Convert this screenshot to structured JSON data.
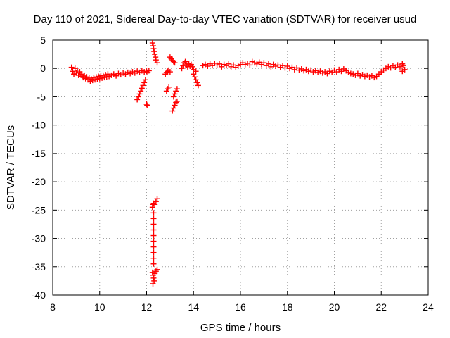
{
  "chart_data": {
    "type": "scatter",
    "title": "Day 110 of 2021, Sidereal Day-to-day VTEC variation (SDTVAR) for receiver usud",
    "xlabel": "GPS time / hours",
    "ylabel": "SDTVAR / TECUs",
    "xlim": [
      8,
      24
    ],
    "ylim": [
      -40,
      5
    ],
    "xticks": [
      8,
      10,
      12,
      14,
      16,
      18,
      20,
      22,
      24
    ],
    "yticks": [
      5,
      0,
      -5,
      -10,
      -15,
      -20,
      -25,
      -30,
      -35,
      -40
    ],
    "grid": true,
    "marker": "+",
    "marker_color": "#ff0000",
    "series": [
      {
        "name": "SDTVAR",
        "points": [
          [
            8.8,
            0.2
          ],
          [
            8.85,
            -0.5
          ],
          [
            8.9,
            -1.0
          ],
          [
            8.95,
            0.0
          ],
          [
            9.0,
            -0.8
          ],
          [
            9.05,
            -0.3
          ],
          [
            9.1,
            -1.2
          ],
          [
            9.15,
            -0.6
          ],
          [
            9.2,
            -1.0
          ],
          [
            9.25,
            -1.4
          ],
          [
            9.3,
            -1.6
          ],
          [
            9.35,
            -1.2
          ],
          [
            9.4,
            -1.8
          ],
          [
            9.45,
            -1.5
          ],
          [
            9.5,
            -2.0
          ],
          [
            9.55,
            -1.7
          ],
          [
            9.6,
            -2.3
          ],
          [
            9.65,
            -1.9
          ],
          [
            9.7,
            -2.1
          ],
          [
            9.75,
            -1.6
          ],
          [
            9.8,
            -2.0
          ],
          [
            9.85,
            -1.5
          ],
          [
            9.9,
            -1.9
          ],
          [
            9.95,
            -1.4
          ],
          [
            10.0,
            -1.8
          ],
          [
            10.05,
            -1.3
          ],
          [
            10.1,
            -1.7
          ],
          [
            10.15,
            -1.2
          ],
          [
            10.2,
            -1.6
          ],
          [
            10.25,
            -1.1
          ],
          [
            10.3,
            -1.5
          ],
          [
            10.35,
            -1.0
          ],
          [
            10.4,
            -1.4
          ],
          [
            10.5,
            -1.2
          ],
          [
            10.6,
            -1.0
          ],
          [
            10.7,
            -1.3
          ],
          [
            10.8,
            -0.9
          ],
          [
            10.9,
            -1.1
          ],
          [
            11.0,
            -0.8
          ],
          [
            11.1,
            -1.0
          ],
          [
            11.2,
            -0.7
          ],
          [
            11.3,
            -0.9
          ],
          [
            11.4,
            -0.6
          ],
          [
            11.5,
            -0.8
          ],
          [
            11.6,
            -0.5
          ],
          [
            11.7,
            -0.7
          ],
          [
            11.8,
            -0.4
          ],
          [
            11.9,
            -0.6
          ],
          [
            12.0,
            -0.5
          ],
          [
            12.05,
            -0.7
          ],
          [
            12.1,
            -0.4
          ],
          [
            11.6,
            -5.5
          ],
          [
            11.65,
            -5.0
          ],
          [
            11.7,
            -4.5
          ],
          [
            11.75,
            -4.0
          ],
          [
            11.8,
            -3.5
          ],
          [
            11.85,
            -3.0
          ],
          [
            11.9,
            -2.5
          ],
          [
            11.95,
            -2.0
          ],
          [
            12.0,
            -6.3
          ],
          [
            12.02,
            -6.5
          ],
          [
            12.25,
            4.5
          ],
          [
            12.28,
            4.0
          ],
          [
            12.3,
            3.5
          ],
          [
            12.32,
            3.0
          ],
          [
            12.35,
            2.5
          ],
          [
            12.38,
            2.0
          ],
          [
            12.4,
            1.5
          ],
          [
            12.45,
            1.0
          ],
          [
            12.25,
            -24.5
          ],
          [
            12.28,
            -24.0
          ],
          [
            12.3,
            -23.8
          ],
          [
            12.35,
            -24.0
          ],
          [
            12.4,
            -23.5
          ],
          [
            12.45,
            -23.0
          ],
          [
            12.3,
            -25.5
          ],
          [
            12.3,
            -26.5
          ],
          [
            12.3,
            -27.5
          ],
          [
            12.3,
            -28.5
          ],
          [
            12.3,
            -29.5
          ],
          [
            12.3,
            -30.5
          ],
          [
            12.3,
            -31.5
          ],
          [
            12.3,
            -32.5
          ],
          [
            12.3,
            -33.5
          ],
          [
            12.3,
            -34.5
          ],
          [
            12.25,
            -36.0
          ],
          [
            12.28,
            -36.5
          ],
          [
            12.3,
            -37.0
          ],
          [
            12.32,
            -37.5
          ],
          [
            12.35,
            -36.2
          ],
          [
            12.4,
            -35.8
          ],
          [
            12.45,
            -35.5
          ],
          [
            12.27,
            -38.0
          ],
          [
            12.8,
            -1.0
          ],
          [
            12.85,
            -0.7
          ],
          [
            12.9,
            -0.5
          ],
          [
            12.95,
            -0.3
          ],
          [
            13.0,
            -0.6
          ],
          [
            12.85,
            -4.0
          ],
          [
            12.9,
            -3.6
          ],
          [
            12.95,
            -3.3
          ],
          [
            13.0,
            2.0
          ],
          [
            13.05,
            1.7
          ],
          [
            13.1,
            1.4
          ],
          [
            13.15,
            1.2
          ],
          [
            13.2,
            1.0
          ],
          [
            13.15,
            -5.0
          ],
          [
            13.2,
            -4.5
          ],
          [
            13.25,
            -4.0
          ],
          [
            13.3,
            -3.6
          ],
          [
            13.1,
            -7.5
          ],
          [
            13.15,
            -7.0
          ],
          [
            13.2,
            -6.5
          ],
          [
            13.25,
            -6.0
          ],
          [
            13.3,
            -5.8
          ],
          [
            13.5,
            0.0
          ],
          [
            13.55,
            0.5
          ],
          [
            13.6,
            1.0
          ],
          [
            13.65,
            1.2
          ],
          [
            13.7,
            0.6
          ],
          [
            13.75,
            0.3
          ],
          [
            13.8,
            0.8
          ],
          [
            13.85,
            0.4
          ],
          [
            13.9,
            0.7
          ],
          [
            13.95,
            0.3
          ],
          [
            14.0,
            -0.2
          ],
          [
            14.0,
            -1.0
          ],
          [
            14.05,
            -1.5
          ],
          [
            14.1,
            -2.0
          ],
          [
            14.15,
            -2.5
          ],
          [
            14.2,
            -3.0
          ],
          [
            14.1,
            -0.5
          ],
          [
            14.4,
            0.5
          ],
          [
            14.5,
            0.7
          ],
          [
            14.6,
            0.4
          ],
          [
            14.7,
            0.8
          ],
          [
            14.8,
            0.5
          ],
          [
            14.9,
            0.9
          ],
          [
            15.0,
            0.6
          ],
          [
            15.1,
            0.8
          ],
          [
            15.2,
            0.3
          ],
          [
            15.3,
            0.7
          ],
          [
            15.4,
            0.5
          ],
          [
            15.5,
            0.8
          ],
          [
            15.6,
            0.3
          ],
          [
            15.7,
            0.6
          ],
          [
            15.8,
            0.2
          ],
          [
            15.9,
            0.5
          ],
          [
            16.0,
            0.7
          ],
          [
            16.1,
            1.0
          ],
          [
            16.2,
            0.7
          ],
          [
            16.3,
            0.9
          ],
          [
            16.4,
            0.6
          ],
          [
            16.5,
            1.2
          ],
          [
            16.6,
            1.0
          ],
          [
            16.7,
            0.8
          ],
          [
            16.8,
            1.1
          ],
          [
            16.9,
            0.7
          ],
          [
            17.0,
            1.0
          ],
          [
            17.1,
            0.5
          ],
          [
            17.2,
            0.8
          ],
          [
            17.3,
            0.3
          ],
          [
            17.4,
            0.7
          ],
          [
            17.5,
            0.4
          ],
          [
            17.6,
            0.6
          ],
          [
            17.7,
            0.2
          ],
          [
            17.8,
            0.5
          ],
          [
            17.9,
            0.1
          ],
          [
            18.0,
            0.4
          ],
          [
            18.1,
            0.0
          ],
          [
            18.2,
            0.2
          ],
          [
            18.3,
            -0.2
          ],
          [
            18.4,
            0.1
          ],
          [
            18.5,
            -0.3
          ],
          [
            18.6,
            -0.1
          ],
          [
            18.7,
            -0.4
          ],
          [
            18.8,
            -0.2
          ],
          [
            18.9,
            -0.5
          ],
          [
            19.0,
            -0.3
          ],
          [
            19.1,
            -0.6
          ],
          [
            19.2,
            -0.4
          ],
          [
            19.3,
            -0.7
          ],
          [
            19.4,
            -0.5
          ],
          [
            19.5,
            -0.8
          ],
          [
            19.6,
            -0.6
          ],
          [
            19.7,
            -0.9
          ],
          [
            19.8,
            -0.5
          ],
          [
            19.9,
            -0.7
          ],
          [
            20.0,
            -0.3
          ],
          [
            20.1,
            -0.6
          ],
          [
            20.2,
            -0.2
          ],
          [
            20.3,
            -0.5
          ],
          [
            20.4,
            -0.1
          ],
          [
            20.5,
            -0.4
          ],
          [
            20.6,
            -0.7
          ],
          [
            20.7,
            -0.9
          ],
          [
            20.8,
            -1.0
          ],
          [
            20.9,
            -1.2
          ],
          [
            21.0,
            -0.9
          ],
          [
            21.1,
            -1.3
          ],
          [
            21.2,
            -1.1
          ],
          [
            21.3,
            -1.4
          ],
          [
            21.4,
            -1.2
          ],
          [
            21.5,
            -1.5
          ],
          [
            21.6,
            -1.3
          ],
          [
            21.7,
            -1.6
          ],
          [
            21.8,
            -1.4
          ],
          [
            21.9,
            -1.0
          ],
          [
            22.0,
            -0.6
          ],
          [
            22.1,
            -0.3
          ],
          [
            22.2,
            0.0
          ],
          [
            22.3,
            0.3
          ],
          [
            22.4,
            0.1
          ],
          [
            22.5,
            0.5
          ],
          [
            22.6,
            0.2
          ],
          [
            22.7,
            0.6
          ],
          [
            22.8,
            0.3
          ],
          [
            22.9,
            0.8
          ],
          [
            22.95,
            0.5
          ],
          [
            23.0,
            -0.2
          ],
          [
            22.9,
            -0.5
          ]
        ]
      }
    ]
  }
}
